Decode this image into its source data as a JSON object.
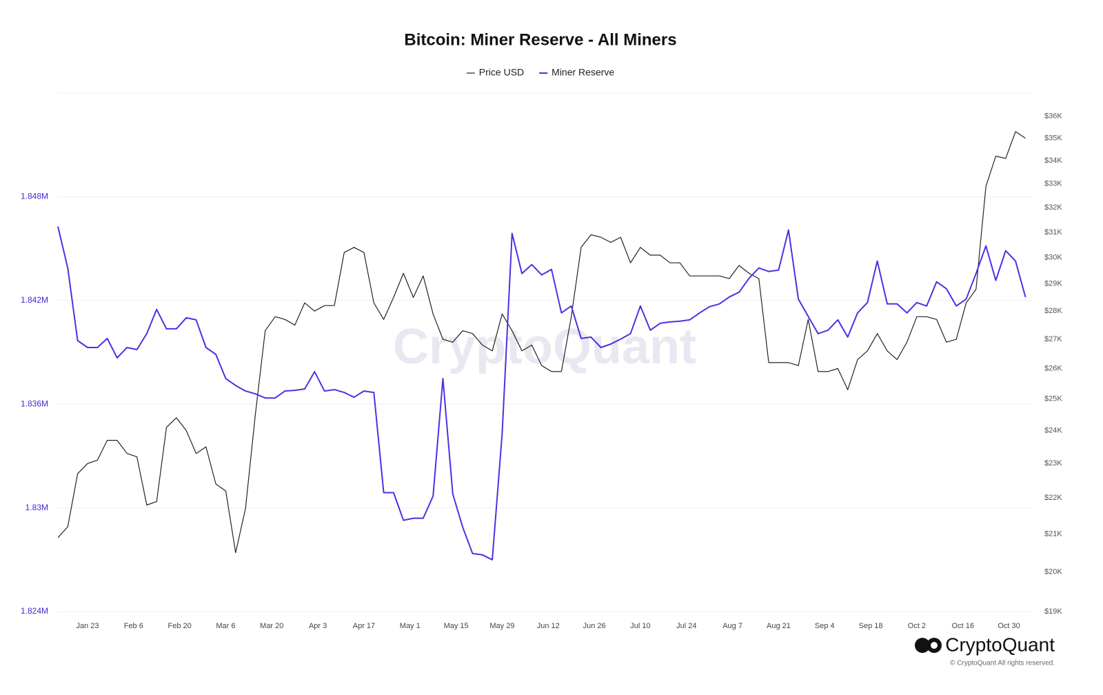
{
  "chart_data": {
    "type": "line",
    "title": "Bitcoin: Miner Reserve - All Miners",
    "x": [
      "Jan 14",
      "Jan 17",
      "Jan 20",
      "Jan 23",
      "Jan 26",
      "Jan 29",
      "Feb 1",
      "Feb 4",
      "Feb 7",
      "Feb 10",
      "Feb 13",
      "Feb 16",
      "Feb 19",
      "Feb 22",
      "Feb 25",
      "Feb 28",
      "Mar 3",
      "Mar 6",
      "Mar 9",
      "Mar 12",
      "Mar 15",
      "Mar 18",
      "Mar 21",
      "Mar 24",
      "Mar 27",
      "Mar 30",
      "Apr 2",
      "Apr 5",
      "Apr 8",
      "Apr 11",
      "Apr 14",
      "Apr 17",
      "Apr 20",
      "Apr 23",
      "Apr 26",
      "Apr 29",
      "May 2",
      "May 5",
      "May 8",
      "May 11",
      "May 14",
      "May 17",
      "May 20",
      "May 23",
      "May 26",
      "May 29",
      "Jun 1",
      "Jun 4",
      "Jun 7",
      "Jun 10",
      "Jun 13",
      "Jun 16",
      "Jun 19",
      "Jun 22",
      "Jun 25",
      "Jun 28",
      "Jul 1",
      "Jul 4",
      "Jul 7",
      "Jul 10",
      "Jul 13",
      "Jul 16",
      "Jul 19",
      "Jul 22",
      "Jul 25",
      "Jul 28",
      "Jul 31",
      "Aug 3",
      "Aug 6",
      "Aug 9",
      "Aug 12",
      "Aug 15",
      "Aug 18",
      "Aug 21",
      "Aug 24",
      "Aug 27",
      "Aug 30",
      "Sep 2",
      "Sep 5",
      "Sep 8",
      "Sep 11",
      "Sep 14",
      "Sep 17",
      "Sep 20",
      "Sep 23",
      "Sep 26",
      "Sep 29",
      "Oct 2",
      "Oct 5",
      "Oct 8",
      "Oct 11",
      "Oct 14",
      "Oct 17",
      "Oct 20",
      "Oct 23",
      "Oct 26",
      "Oct 29",
      "Nov 1",
      "Nov 4"
    ],
    "xlim": [
      "Jan 14",
      "Nov 6"
    ],
    "xticks": [
      "Jan 23",
      "Feb 6",
      "Feb 20",
      "Mar 6",
      "Mar 20",
      "Apr 3",
      "Apr 17",
      "May 1",
      "May 15",
      "May 29",
      "Jun 12",
      "Jun 26",
      "Jul 10",
      "Jul 24",
      "Aug 7",
      "Aug 21",
      "Sep 4",
      "Sep 18",
      "Oct 2",
      "Oct 16",
      "Oct 30"
    ],
    "ylim": [
      1.824,
      1.854
    ],
    "yticks": [
      {
        "value": 1.824,
        "label": "1.824M"
      },
      {
        "value": 1.83,
        "label": "1.83M"
      },
      {
        "value": 1.836,
        "label": "1.836M"
      },
      {
        "value": 1.842,
        "label": "1.842M"
      },
      {
        "value": 1.848,
        "label": "1.848M"
      }
    ],
    "y2lim": [
      19000,
      37100
    ],
    "y2log": true,
    "y2ticks": [
      {
        "value": 19000,
        "label": "$19K"
      },
      {
        "value": 20000,
        "label": "$20K"
      },
      {
        "value": 21000,
        "label": "$21K"
      },
      {
        "value": 22000,
        "label": "$22K"
      },
      {
        "value": 23000,
        "label": "$23K"
      },
      {
        "value": 24000,
        "label": "$24K"
      },
      {
        "value": 25000,
        "label": "$25K"
      },
      {
        "value": 26000,
        "label": "$26K"
      },
      {
        "value": 27000,
        "label": "$27K"
      },
      {
        "value": 28000,
        "label": "$28K"
      },
      {
        "value": 29000,
        "label": "$29K"
      },
      {
        "value": 30000,
        "label": "$30K"
      },
      {
        "value": 31000,
        "label": "$31K"
      },
      {
        "value": 32000,
        "label": "$32K"
      },
      {
        "value": 33000,
        "label": "$33K"
      },
      {
        "value": 34000,
        "label": "$34K"
      },
      {
        "value": 35000,
        "label": "$35K"
      },
      {
        "value": 36000,
        "label": "$36K"
      }
    ],
    "grid": true,
    "series": [
      {
        "name": "Price USD",
        "color": "#222222",
        "axis": "y2",
        "values": [
          20900,
          21200,
          22700,
          23000,
          23100,
          23700,
          23700,
          23300,
          23200,
          21800,
          21900,
          24100,
          24400,
          24000,
          23300,
          23500,
          22400,
          22200,
          20500,
          21700,
          24500,
          27300,
          27800,
          27700,
          27500,
          28300,
          28000,
          28200,
          28200,
          30200,
          30400,
          30200,
          28300,
          27700,
          28500,
          29400,
          28500,
          29300,
          27900,
          27000,
          26900,
          27300,
          27200,
          26800,
          26600,
          27900,
          27300,
          26600,
          26800,
          26100,
          25900,
          25900,
          27800,
          30400,
          30900,
          30800,
          30600,
          30800,
          29800,
          30400,
          30100,
          30100,
          29800,
          29800,
          29300,
          29300,
          29300,
          29300,
          29200,
          29700,
          29400,
          29200,
          26200,
          26200,
          26200,
          26100,
          27700,
          25900,
          25900,
          26000,
          25300,
          26300,
          26600,
          27200,
          26600,
          26300,
          26900,
          27800,
          27800,
          27700,
          26900,
          27000,
          28300,
          28800,
          32900,
          34200,
          34100,
          35300,
          35000
        ]
      },
      {
        "name": "Miner Reserve",
        "color": "#4b30e3",
        "axis": "y",
        "values": [
          1.84628,
          1.84388,
          1.83968,
          1.83928,
          1.83928,
          1.8398,
          1.83868,
          1.83928,
          1.83916,
          1.84008,
          1.84148,
          1.84036,
          1.84036,
          1.841,
          1.84088,
          1.83928,
          1.83888,
          1.83748,
          1.83708,
          1.83676,
          1.8366,
          1.83636,
          1.83636,
          1.83676,
          1.8368,
          1.83688,
          1.83788,
          1.83676,
          1.83684,
          1.83668,
          1.8364,
          1.83676,
          1.83668,
          1.83088,
          1.83088,
          1.82928,
          1.8294,
          1.8294,
          1.83068,
          1.83748,
          1.8308,
          1.82888,
          1.82736,
          1.82728,
          1.827,
          1.83428,
          1.84588,
          1.84356,
          1.84408,
          1.84348,
          1.8438,
          1.84128,
          1.84168,
          1.8398,
          1.83988,
          1.83928,
          1.83948,
          1.83976,
          1.84008,
          1.84168,
          1.84028,
          1.84068,
          1.84076,
          1.8408,
          1.84088,
          1.84128,
          1.84164,
          1.8418,
          1.8422,
          1.84248,
          1.84328,
          1.84388,
          1.84368,
          1.84376,
          1.84608,
          1.84208,
          1.84108,
          1.84008,
          1.84028,
          1.84088,
          1.83988,
          1.84128,
          1.84188,
          1.84428,
          1.8418,
          1.8418,
          1.84128,
          1.84188,
          1.84168,
          1.84308,
          1.84268,
          1.84168,
          1.84208,
          1.84356,
          1.84516,
          1.84316,
          1.84488,
          1.84428,
          1.8422
        ]
      }
    ]
  },
  "branding": {
    "watermark": "CryptoQuant",
    "logo": "CryptoQuant",
    "copyright": "© CryptoQuant All rights reserved."
  }
}
